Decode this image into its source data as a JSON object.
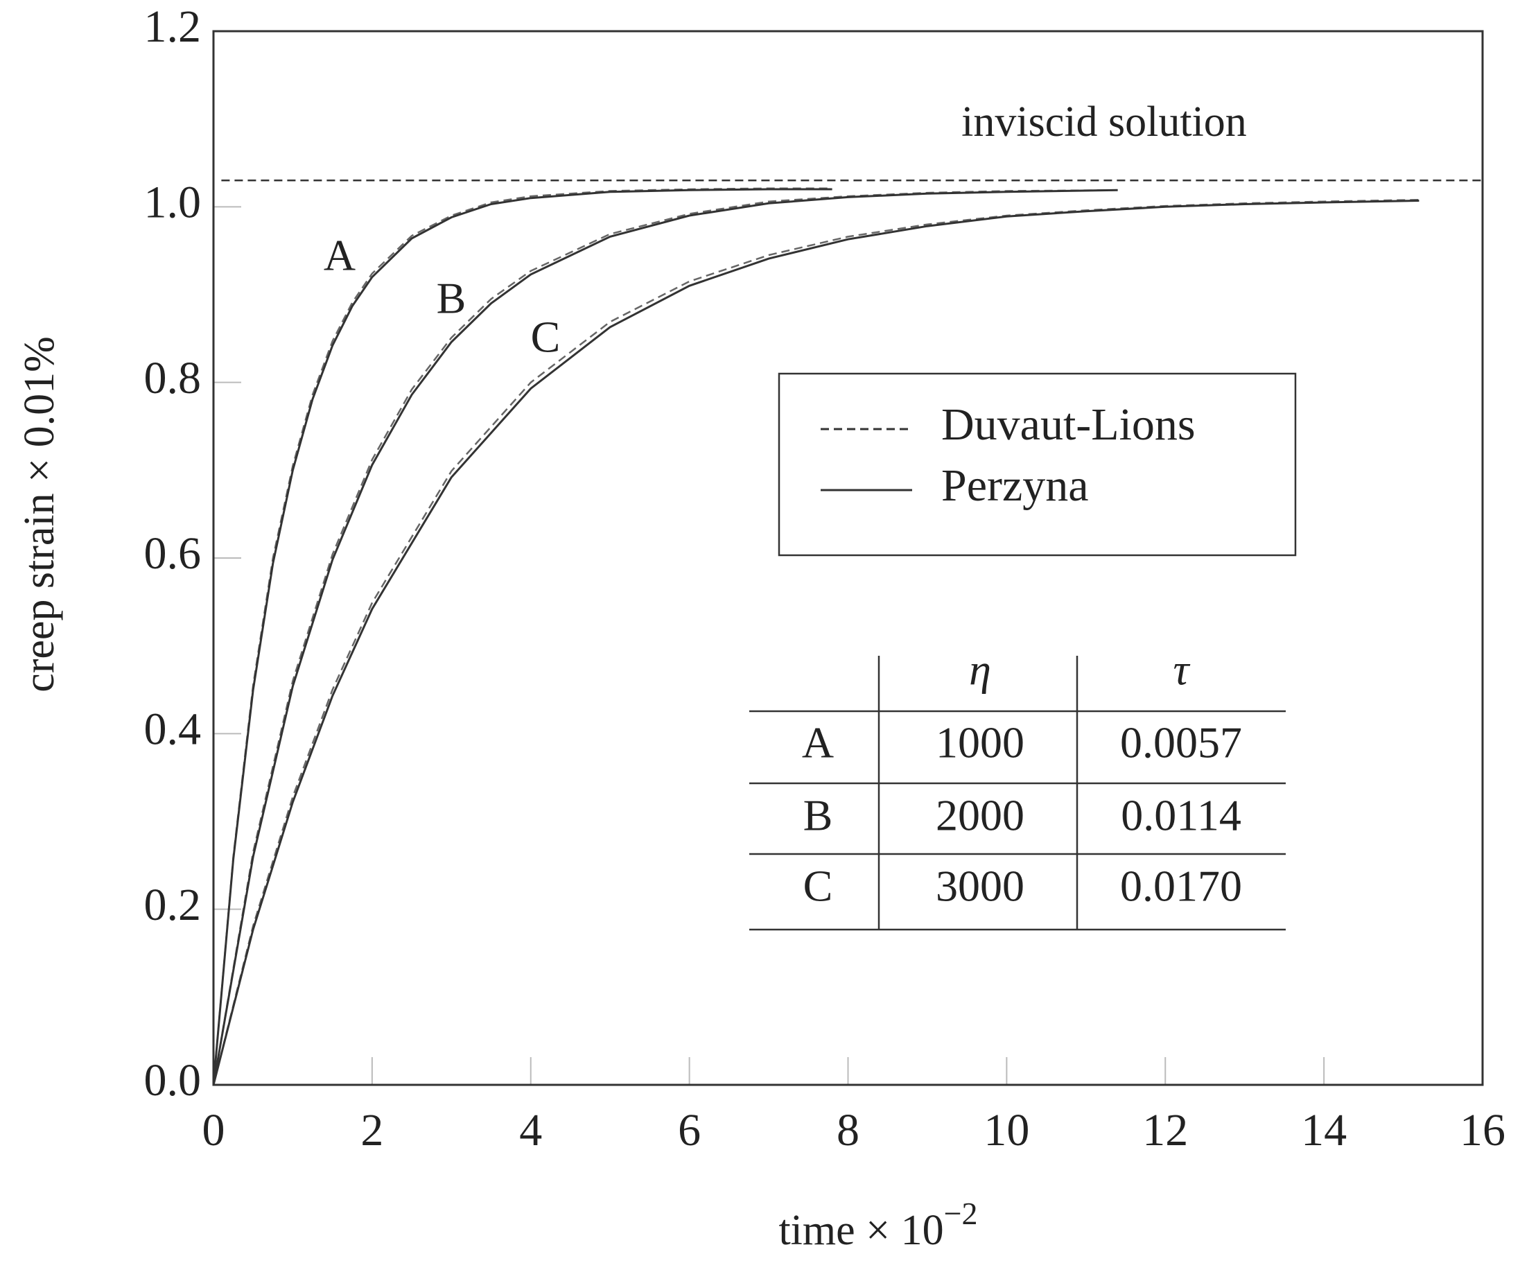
{
  "chart_data": {
    "type": "line",
    "xlabel": "time × 10",
    "xlabel_exponent": "−2",
    "ylabel": "creep strain × 0.01%",
    "xlim": [
      0,
      16
    ],
    "ylim": [
      0,
      1.2
    ],
    "xticks": [
      0,
      2,
      4,
      6,
      8,
      10,
      12,
      14,
      16
    ],
    "yticks": [
      {
        "value": 0,
        "label": "0.0"
      },
      0.2,
      0.4,
      0.6,
      0.8,
      {
        "value": 1,
        "label": "1.0"
      },
      1.2
    ],
    "color": "#333333",
    "reference": {
      "label": "inviscid solution",
      "x": [
        0.1,
        16
      ],
      "values": [
        1.03,
        1.03
      ],
      "style": "dashed"
    },
    "series": [
      {
        "name": "Duvaut-Lions",
        "style": "dashed",
        "curves": [
          {
            "x": [
              0,
              0.25,
              0.5,
              0.75,
              1,
              1.25,
              1.5,
              1.75,
              2,
              2.5,
              3,
              3.5,
              4,
              5,
              6,
              7,
              7.8
            ],
            "values": [
              0,
              0.26,
              0.455,
              0.6,
              0.705,
              0.786,
              0.847,
              0.891,
              0.924,
              0.967,
              0.99,
              1.005,
              1.012,
              1.018,
              1.02,
              1.021,
              1.021
            ]
          },
          {
            "x": [
              0,
              0.5,
              1,
              1.5,
              2,
              2.5,
              3,
              3.5,
              4,
              5,
              6,
              7,
              8,
              9,
              10,
              11.4
            ],
            "values": [
              0,
              0.265,
              0.46,
              0.604,
              0.712,
              0.792,
              0.851,
              0.895,
              0.927,
              0.969,
              0.992,
              1.006,
              1.012,
              1.016,
              1.018,
              1.019
            ]
          },
          {
            "x": [
              0,
              0.5,
              1,
              1.5,
              2,
              3,
              4,
              5,
              6,
              7,
              8,
              9,
              10,
              11,
              12,
              13,
              14,
              15.2
            ],
            "values": [
              0,
              0.181,
              0.328,
              0.45,
              0.549,
              0.699,
              0.8,
              0.869,
              0.915,
              0.945,
              0.966,
              0.98,
              0.99,
              0.996,
              1.001,
              1.004,
              1.006,
              1.008
            ]
          }
        ]
      },
      {
        "name": "Perzyna",
        "style": "solid",
        "curves": [
          {
            "label": "A",
            "x": [
              0,
              0.25,
              0.5,
              0.75,
              1,
              1.25,
              1.5,
              1.75,
              2,
              2.5,
              3,
              3.5,
              4,
              5,
              6,
              7,
              7.8
            ],
            "values": [
              0,
              0.257,
              0.45,
              0.594,
              0.7,
              0.781,
              0.842,
              0.887,
              0.92,
              0.964,
              0.988,
              1.003,
              1.01,
              1.017,
              1.019,
              1.02,
              1.02
            ]
          },
          {
            "label": "B",
            "x": [
              0,
              0.5,
              1,
              1.5,
              2,
              2.5,
              3,
              3.5,
              4,
              5,
              6,
              7,
              8,
              9,
              10,
              11.4
            ],
            "values": [
              0,
              0.26,
              0.454,
              0.598,
              0.706,
              0.786,
              0.846,
              0.89,
              0.923,
              0.966,
              0.99,
              1.004,
              1.011,
              1.015,
              1.017,
              1.019
            ]
          },
          {
            "label": "C",
            "x": [
              0,
              0.5,
              1,
              1.5,
              2,
              3,
              4,
              5,
              6,
              7,
              8,
              9,
              10,
              11,
              12,
              13,
              14,
              15.2
            ],
            "values": [
              0,
              0.177,
              0.322,
              0.443,
              0.542,
              0.692,
              0.793,
              0.863,
              0.91,
              0.941,
              0.963,
              0.978,
              0.989,
              0.995,
              1.0,
              1.003,
              1.005,
              1.007
            ]
          }
        ]
      }
    ],
    "table": {
      "header": [
        "η",
        "τ"
      ],
      "rows": [
        [
          "A",
          "1000",
          "0.0057"
        ],
        [
          "B",
          "2000",
          "0.0114"
        ],
        [
          "C",
          "3000",
          "0.0170"
        ]
      ]
    }
  }
}
